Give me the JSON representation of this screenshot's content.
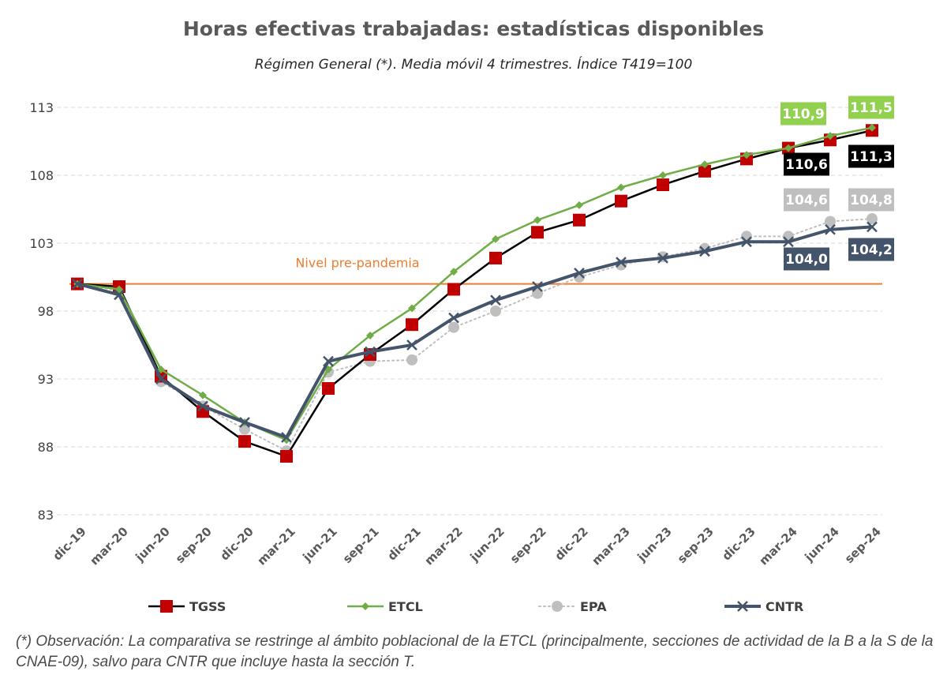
{
  "chart_data": {
    "type": "line",
    "title": "Horas efectivas trabajadas: estadísticas disponibles",
    "subtitle": "Régimen General (*). Media móvil 4 trimestres. Índice T419=100",
    "categories": [
      "dic-19",
      "mar-20",
      "jun-20",
      "sep-20",
      "dic-20",
      "mar-21",
      "jun-21",
      "sep-21",
      "dic-21",
      "mar-22",
      "jun-22",
      "sep-22",
      "dic-22",
      "mar-23",
      "jun-23",
      "sep-23",
      "dic-23",
      "mar-24",
      "jun-24",
      "sep-24"
    ],
    "y_ticks": [
      "83",
      "88",
      "93",
      "98",
      "103",
      "108",
      "113"
    ],
    "ylim": [
      83,
      113
    ],
    "grid": true,
    "legend_position": "bottom",
    "series": [
      {
        "name": "TGSS",
        "color": "#c00000",
        "line_color": "#000000",
        "marker": "square",
        "values": [
          100,
          99.8,
          93.2,
          90.6,
          88.4,
          87.3,
          92.3,
          94.8,
          97.0,
          99.6,
          101.9,
          103.8,
          104.7,
          106.1,
          107.3,
          108.3,
          109.2,
          110.0,
          110.6,
          111.3
        ]
      },
      {
        "name": "ETCL",
        "color": "#70ad47",
        "line_color": "#70ad47",
        "marker": "diamond",
        "values": [
          100,
          99.6,
          93.7,
          91.8,
          89.8,
          88.5,
          93.7,
          96.2,
          98.2,
          100.9,
          103.3,
          104.7,
          105.8,
          107.1,
          108.0,
          108.8,
          109.5,
          110.0,
          110.9,
          111.5
        ]
      },
      {
        "name": "EPA",
        "color": "#bfbfbf",
        "line_color": "#bfbfbf",
        "marker": "circle",
        "values": [
          100,
          99.5,
          92.8,
          91.0,
          89.3,
          87.7,
          93.5,
          94.3,
          94.4,
          96.8,
          98.0,
          99.3,
          100.5,
          101.4,
          102.0,
          102.6,
          103.5,
          103.5,
          104.6,
          104.8
        ]
      },
      {
        "name": "CNTR",
        "color": "#44546a",
        "line_color": "#44546a",
        "marker": "x",
        "values": [
          100,
          99.2,
          93.0,
          91.0,
          89.8,
          88.7,
          94.3,
          95.0,
          95.5,
          97.5,
          98.8,
          99.8,
          100.8,
          101.6,
          101.9,
          102.4,
          103.1,
          103.1,
          104.0,
          104.2
        ]
      }
    ],
    "reference_line": {
      "label": "Nivel pre-pandemia",
      "value": 100,
      "color": "#ed7d31"
    },
    "callouts": [
      {
        "text": "110,9",
        "series": "ETCL",
        "color": "#92d050"
      },
      {
        "text": "111,5",
        "series": "ETCL",
        "color": "#92d050"
      },
      {
        "text": "110,6",
        "series": "TGSS",
        "color": "#000000"
      },
      {
        "text": "111,3",
        "series": "TGSS",
        "color": "#000000"
      },
      {
        "text": "104,6",
        "series": "EPA",
        "color": "#bfbfbf"
      },
      {
        "text": "104,8",
        "series": "EPA",
        "color": "#bfbfbf"
      },
      {
        "text": "104,0",
        "series": "CNTR",
        "color": "#44546a"
      },
      {
        "text": "104,2",
        "series": "CNTR",
        "color": "#44546a"
      }
    ]
  },
  "footnote": "(*) Observación: La comparativa se restringe al ámbito poblacional de la ETCL (principalmente, secciones de actividad de la B a la S de la CNAE-09), salvo para CNTR que incluye hasta la sección T."
}
